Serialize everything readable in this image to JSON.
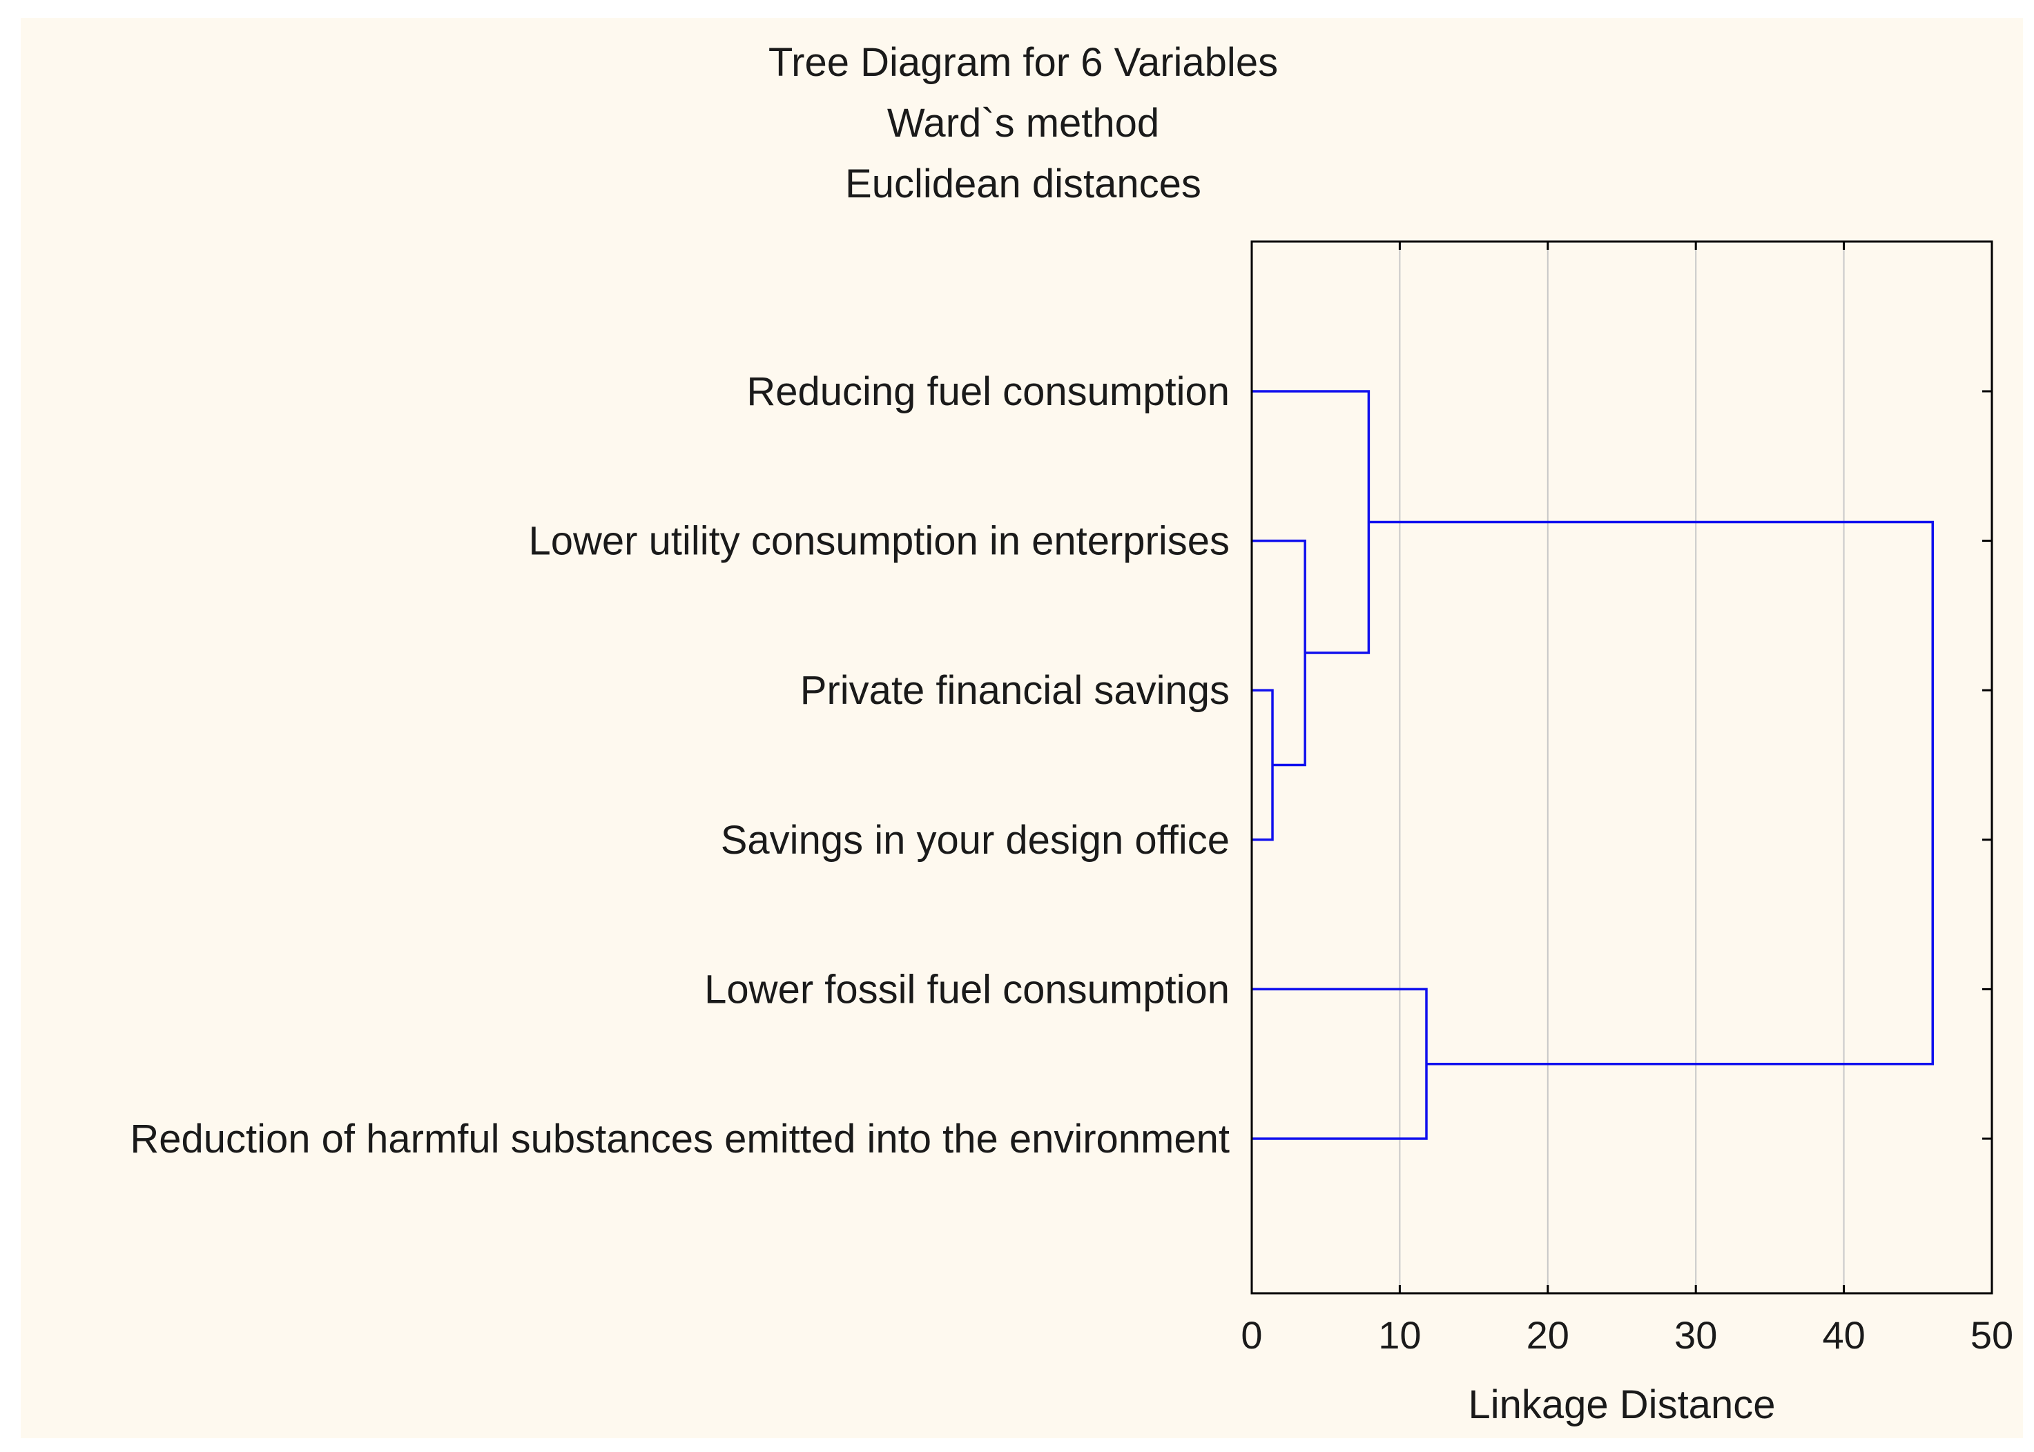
{
  "chart_data": {
    "type": "dendrogram",
    "orientation": "horizontal",
    "title": "Tree Diagram for 6 Variables",
    "subtitles": [
      "Ward`s method",
      "Euclidean distances"
    ],
    "xlabel": "Linkage Distance",
    "xlim": [
      0,
      50
    ],
    "xticks": [
      0,
      10,
      20,
      30,
      40,
      50
    ],
    "grid": "vertical",
    "leaves": [
      "Reducing fuel consumption",
      "Lower utility consumption in enterprises",
      "Private financial savings",
      "Savings in your design office",
      "Lower fossil fuel consumption",
      "Reduction of harmful substances emitted into the environment"
    ],
    "merges": [
      {
        "left": "leaf:2",
        "right": "leaf:3",
        "distance": 1.4
      },
      {
        "left": "leaf:1",
        "right": "node:0",
        "distance": 3.6
      },
      {
        "left": "leaf:0",
        "right": "node:1",
        "distance": 7.9
      },
      {
        "left": "leaf:4",
        "right": "leaf:5",
        "distance": 11.8
      },
      {
        "left": "node:2",
        "right": "node:3",
        "distance": 46.0
      }
    ],
    "colors": {
      "line": "#1010ee",
      "grid": "#c8c8c8",
      "axis": "#000000",
      "background": "#fef9ef"
    }
  }
}
